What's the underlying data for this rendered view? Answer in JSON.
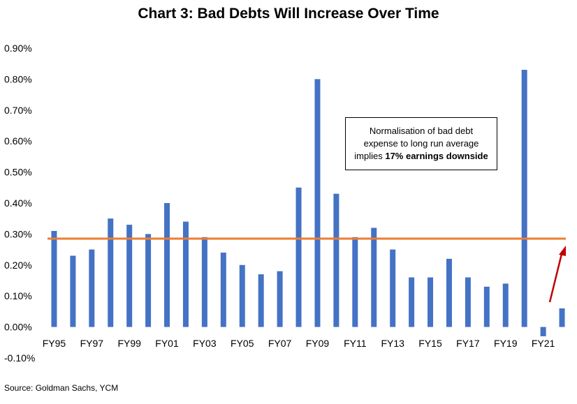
{
  "source": "Source: Goldman Sachs, YCM",
  "annotation": {
    "line1": "Normalisation of bad debt",
    "line2": "expense to long run average",
    "line3_prefix": "implies ",
    "line3_bold": "17% earnings downside"
  },
  "colors": {
    "bar": "#4472C4",
    "average_line": "#ED7D31",
    "arrow": "#C00000"
  },
  "chart_data": {
    "type": "bar",
    "title": "Chart 3: Bad Debts Will Increase Over Time",
    "categories": [
      "FY95",
      "FY96",
      "FY97",
      "FY98",
      "FY99",
      "FY00",
      "FY01",
      "FY02",
      "FY03",
      "FY04",
      "FY05",
      "FY06",
      "FY07",
      "FY08",
      "FY09",
      "FY10",
      "FY11",
      "FY12",
      "FY13",
      "FY14",
      "FY15",
      "FY16",
      "FY17",
      "FY18",
      "FY19",
      "FY20",
      "FY21",
      "FY22"
    ],
    "tick_labels": [
      "FY95",
      "FY97",
      "FY99",
      "FY01",
      "FY03",
      "FY05",
      "FY07",
      "FY09",
      "FY11",
      "FY13",
      "FY15",
      "FY17",
      "FY19",
      "FY21"
    ],
    "values": [
      0.31,
      0.23,
      0.25,
      0.35,
      0.33,
      0.3,
      0.4,
      0.34,
      0.29,
      0.24,
      0.2,
      0.17,
      0.18,
      0.45,
      0.8,
      0.43,
      0.29,
      0.32,
      0.25,
      0.16,
      0.16,
      0.22,
      0.16,
      0.13,
      0.14,
      0.83,
      -0.03,
      0.06
    ],
    "average_value": 0.285,
    "ylim": [
      -0.1,
      0.9
    ],
    "yticks": [
      "0.90%",
      "0.80%",
      "0.70%",
      "0.60%",
      "0.50%",
      "0.40%",
      "0.30%",
      "0.20%",
      "0.10%",
      "0.00%",
      "-0.10%"
    ],
    "ytick_values": [
      0.9,
      0.8,
      0.7,
      0.6,
      0.5,
      0.4,
      0.3,
      0.2,
      0.1,
      0.0,
      -0.1
    ],
    "grid": false,
    "legend": "none"
  }
}
